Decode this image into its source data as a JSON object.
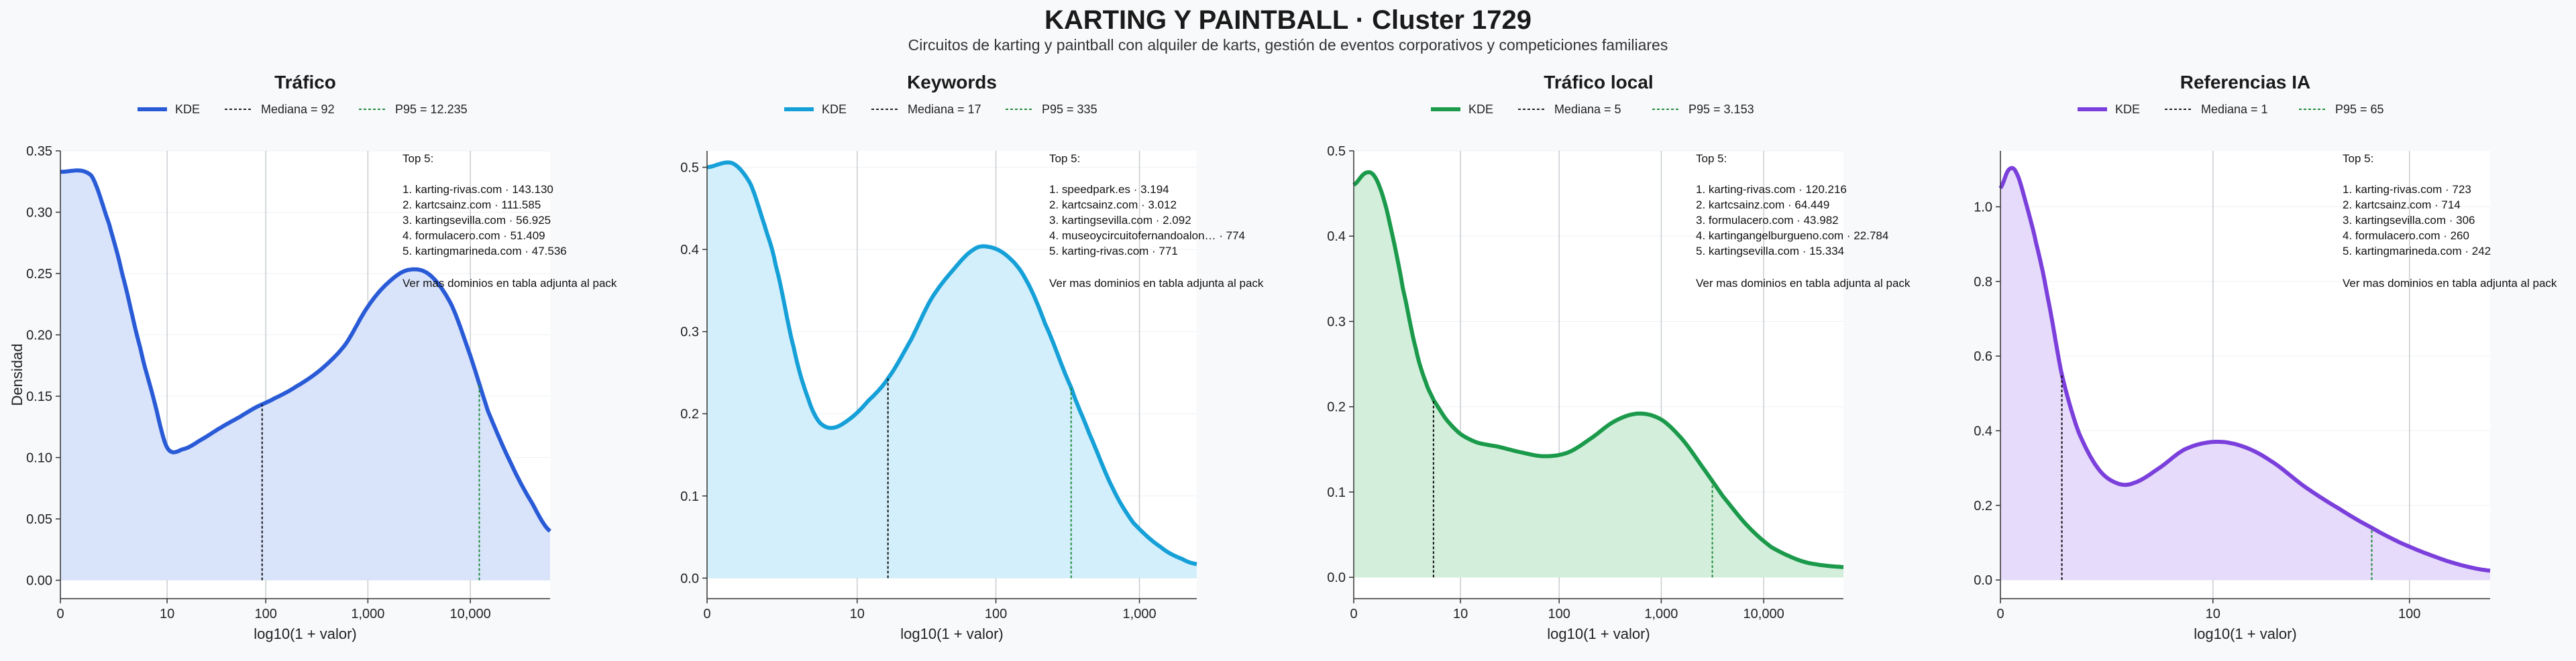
{
  "title": "KARTING Y PAINTBALL · Cluster 1729",
  "subtitle": "Circuitos de karting y paintball con alquiler de karts, gestión de eventos corporativos y competiciones familiares",
  "chart_data": [
    {
      "type": "area",
      "title": "Tráfico",
      "color": "#2a5bd7",
      "fill": "#d9e4fb",
      "xlabel": "log10(1 + valor)",
      "ylabel": "Densidad",
      "x_scale": "log10(1+x)",
      "xlim": [
        0,
        60000
      ],
      "ylim": [
        -0.015,
        0.35
      ],
      "yticks": [
        0,
        0.05,
        0.1,
        0.15,
        0.2,
        0.25,
        0.3,
        0.35
      ],
      "ytick_labels": [
        "0.00",
        "0.05",
        "0.10",
        "0.15",
        "0.20",
        "0.25",
        "0.30",
        "0.35"
      ],
      "xticks": [
        0,
        10,
        100,
        1000,
        10000
      ],
      "xtick_labels": [
        "0",
        "10",
        "100",
        "1,000",
        "10,000"
      ],
      "grid_x": true,
      "legend": {
        "placement": "top-center",
        "kde": "KDE",
        "median": "Mediana = 92",
        "p95": "P95 = 12.235"
      },
      "median": 92,
      "p95": 12235,
      "kde": {
        "x": [
          0,
          1,
          2,
          3,
          5,
          7,
          10,
          15,
          22,
          35,
          55,
          80,
          120,
          200,
          350,
          600,
          1000,
          1600,
          2500,
          4000,
          6500,
          10000,
          15000,
          25000,
          40000,
          60000
        ],
        "y": [
          0.333,
          0.33,
          0.29,
          0.25,
          0.19,
          0.15,
          0.108,
          0.107,
          0.114,
          0.124,
          0.133,
          0.141,
          0.148,
          0.158,
          0.172,
          0.192,
          0.223,
          0.243,
          0.253,
          0.249,
          0.225,
          0.183,
          0.137,
          0.095,
          0.063,
          0.04
        ]
      },
      "top5": {
        "heading": "Top 5:",
        "items": [
          "1. karting-rivas.com · 143.130",
          "2. kartcsainz.com · 111.585",
          "3. kartingsevilla.com · 56.925",
          "4. formulacero.com · 51.409",
          "5. kartingmarineda.com · 47.536"
        ],
        "footer": "Ver mas dominios en tabla adjunta al pack"
      }
    },
    {
      "type": "area",
      "title": "Keywords",
      "color": "#16a0d8",
      "fill": "#d2effb",
      "xlabel": "log10(1 + valor)",
      "ylabel": "",
      "x_scale": "log10(1+x)",
      "xlim": [
        0,
        2500
      ],
      "ylim": [
        -0.025,
        0.52
      ],
      "yticks": [
        0,
        0.1,
        0.2,
        0.3,
        0.4,
        0.5
      ],
      "ytick_labels": [
        "0.0",
        "0.1",
        "0.2",
        "0.3",
        "0.4",
        "0.5"
      ],
      "xticks": [
        0,
        10,
        100,
        1000
      ],
      "xtick_labels": [
        "0",
        "10",
        "100",
        "1,000"
      ],
      "grid_x": true,
      "legend": {
        "placement": "top-center",
        "kde": "KDE",
        "median": "Mediana = 17",
        "p95": "P95 = 335"
      },
      "median": 17,
      "p95": 335,
      "kde": {
        "x": [
          0,
          0.5,
          1,
          1.5,
          2,
          3,
          4,
          5,
          6.5,
          9,
          12,
          17,
          25,
          35,
          50,
          70,
          90,
          120,
          160,
          220,
          335,
          450,
          650,
          900,
          1400,
          2000,
          2500
        ],
        "y": [
          0.5,
          0.505,
          0.48,
          0.43,
          0.38,
          0.28,
          0.22,
          0.19,
          0.183,
          0.195,
          0.215,
          0.243,
          0.29,
          0.34,
          0.375,
          0.4,
          0.403,
          0.392,
          0.365,
          0.31,
          0.232,
          0.175,
          0.11,
          0.068,
          0.038,
          0.023,
          0.017
        ]
      },
      "top5": {
        "heading": "Top 5:",
        "items": [
          "1. speedpark.es · 3.194",
          "2. kartcsainz.com · 3.012",
          "3. kartingsevilla.com · 2.092",
          "4. museoycircuitofernandoalon… · 774",
          "5. karting-rivas.com · 771"
        ],
        "footer": "Ver mas dominios en tabla adjunta al pack"
      }
    },
    {
      "type": "area",
      "title": "Tráfico local",
      "color": "#1b9a4b",
      "fill": "#d3efdc",
      "xlabel": "log10(1 + valor)",
      "ylabel": "",
      "x_scale": "log10(1+x)",
      "xlim": [
        0,
        60000
      ],
      "ylim": [
        -0.025,
        0.5
      ],
      "yticks": [
        0,
        0.1,
        0.2,
        0.3,
        0.4,
        0.5
      ],
      "ytick_labels": [
        "0.0",
        "0.1",
        "0.2",
        "0.3",
        "0.4",
        "0.5"
      ],
      "xticks": [
        0,
        10,
        100,
        1000,
        10000
      ],
      "xtick_labels": [
        "0",
        "10",
        "100",
        "1,000",
        "10,000"
      ],
      "grid_x": true,
      "legend": {
        "placement": "top-center",
        "kde": "KDE",
        "median": "Mediana = 5",
        "p95": "P95 = 3.153"
      },
      "median": 5,
      "p95": 3153,
      "kde": {
        "x": [
          0,
          0.3,
          0.6,
          1,
          1.5,
          2,
          3,
          4,
          5,
          7,
          10,
          15,
          25,
          40,
          70,
          120,
          200,
          350,
          600,
          1000,
          1600,
          2500,
          4000,
          7000,
          12000,
          25000,
          60000
        ],
        "y": [
          0.46,
          0.474,
          0.47,
          0.44,
          0.39,
          0.34,
          0.27,
          0.23,
          0.208,
          0.185,
          0.168,
          0.158,
          0.153,
          0.147,
          0.142,
          0.146,
          0.162,
          0.183,
          0.192,
          0.185,
          0.162,
          0.13,
          0.095,
          0.06,
          0.035,
          0.018,
          0.012
        ]
      },
      "top5": {
        "heading": "Top 5:",
        "items": [
          "1. karting-rivas.com · 120.216",
          "2. kartcsainz.com · 64.449",
          "3. formulacero.com · 43.982",
          "4. kartingangelburgueno.com · 22.784",
          "5. kartingsevilla.com · 15.334"
        ],
        "footer": "Ver mas dominios en tabla adjunta al pack"
      }
    },
    {
      "type": "area",
      "title": "Referencias IA",
      "color": "#7b3fdc",
      "fill": "#e6dbfa",
      "xlabel": "log10(1 + valor)",
      "ylabel": "",
      "x_scale": "log10(1+x)",
      "xlim": [
        0,
        250
      ],
      "ylim": [
        -0.05,
        1.15
      ],
      "yticks": [
        0,
        0.2,
        0.4,
        0.6,
        0.8,
        1.0
      ],
      "ytick_labels": [
        "0.0",
        "0.2",
        "0.4",
        "0.6",
        "0.8",
        "1.0"
      ],
      "xticks": [
        0,
        10,
        100
      ],
      "xtick_labels": [
        "0",
        "10",
        "100"
      ],
      "grid_x": true,
      "legend": {
        "placement": "top-center",
        "kde": "KDE",
        "median": "Mediana = 1",
        "p95": "P95 = 65"
      },
      "median": 1,
      "p95": 65,
      "kde": {
        "x": [
          0,
          0.1,
          0.2,
          0.35,
          0.5,
          0.7,
          1,
          1.4,
          2,
          2.7,
          3.5,
          5,
          7,
          10,
          14,
          20,
          30,
          45,
          65,
          90,
          130,
          180,
          250
        ],
        "y": [
          1.05,
          1.1,
          1.09,
          1.0,
          0.9,
          0.76,
          0.55,
          0.4,
          0.3,
          0.26,
          0.26,
          0.3,
          0.35,
          0.37,
          0.36,
          0.32,
          0.25,
          0.19,
          0.14,
          0.1,
          0.065,
          0.04,
          0.025
        ]
      },
      "top5": {
        "heading": "Top 5:",
        "items": [
          "1. karting-rivas.com · 723",
          "2. kartcsainz.com · 714",
          "3. kartingsevilla.com · 306",
          "4. formulacero.com · 260",
          "5. kartingmarineda.com · 242"
        ],
        "footer": "Ver mas dominios en tabla adjunta al pack"
      }
    }
  ]
}
